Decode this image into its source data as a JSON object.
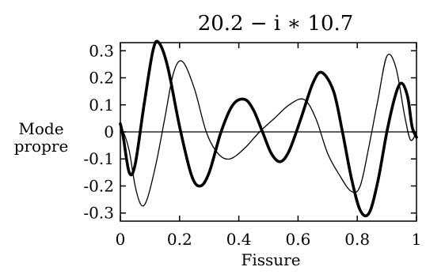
{
  "chart_data": {
    "type": "line",
    "title": "20.2 − i ∗ 10.7",
    "xlabel": "Fissure",
    "ylabel": [
      "Mode",
      "propre"
    ],
    "xlim": [
      0,
      1
    ],
    "ylim": [
      -0.33,
      0.33
    ],
    "x_ticks": [
      0,
      0.2,
      0.4,
      0.6,
      0.8,
      1
    ],
    "x_tick_labels": [
      "0",
      "0.2",
      "0.4",
      "0.6",
      "0.8",
      "1"
    ],
    "y_ticks": [
      0.3,
      0.2,
      0.1,
      0,
      -0.1,
      -0.2,
      -0.3
    ],
    "y_tick_labels": [
      "0.3",
      "0.2",
      "0.1",
      "0",
      "-0.1",
      "-0.2",
      "-0.3"
    ],
    "grid": false,
    "series": [
      {
        "style": "thick",
        "x": [
          0,
          0.01,
          0.03,
          0.05,
          0.08,
          0.11,
          0.13,
          0.16,
          0.2,
          0.24,
          0.27,
          0.3,
          0.34,
          0.38,
          0.42,
          0.45,
          0.48,
          0.51,
          0.54,
          0.57,
          0.61,
          0.65,
          0.68,
          0.72,
          0.75,
          0.78,
          0.81,
          0.84,
          0.87,
          0.9,
          0.93,
          0.95,
          0.97,
          0.985,
          1.0
        ],
        "y": [
          0.03,
          -0.02,
          -0.15,
          -0.12,
          0.1,
          0.3,
          0.33,
          0.24,
          0.02,
          -0.16,
          -0.2,
          -0.15,
          0.0,
          0.1,
          0.12,
          0.08,
          0.0,
          -0.08,
          -0.11,
          -0.07,
          0.05,
          0.18,
          0.22,
          0.15,
          0.0,
          -0.17,
          -0.29,
          -0.3,
          -0.18,
          0.0,
          0.14,
          0.18,
          0.13,
          0.02,
          -0.02
        ]
      },
      {
        "style": "thin",
        "x": [
          0,
          0.01,
          0.03,
          0.05,
          0.07,
          0.09,
          0.12,
          0.15,
          0.18,
          0.21,
          0.25,
          0.29,
          0.33,
          0.37,
          0.42,
          0.47,
          0.52,
          0.57,
          0.62,
          0.66,
          0.7,
          0.74,
          0.78,
          0.81,
          0.84,
          0.87,
          0.9,
          0.93,
          0.96,
          0.98,
          1.0
        ],
        "y": [
          0.0,
          0.0,
          -0.07,
          -0.2,
          -0.27,
          -0.25,
          -0.12,
          0.05,
          0.22,
          0.26,
          0.16,
          0.0,
          -0.08,
          -0.1,
          -0.06,
          0.0,
          0.05,
          0.1,
          0.12,
          0.05,
          -0.08,
          -0.16,
          -0.22,
          -0.2,
          -0.05,
          0.12,
          0.28,
          0.24,
          0.06,
          -0.03,
          0.0
        ]
      },
      {
        "style": "baseline",
        "x": [
          0,
          1
        ],
        "y": [
          0,
          0
        ]
      }
    ]
  }
}
